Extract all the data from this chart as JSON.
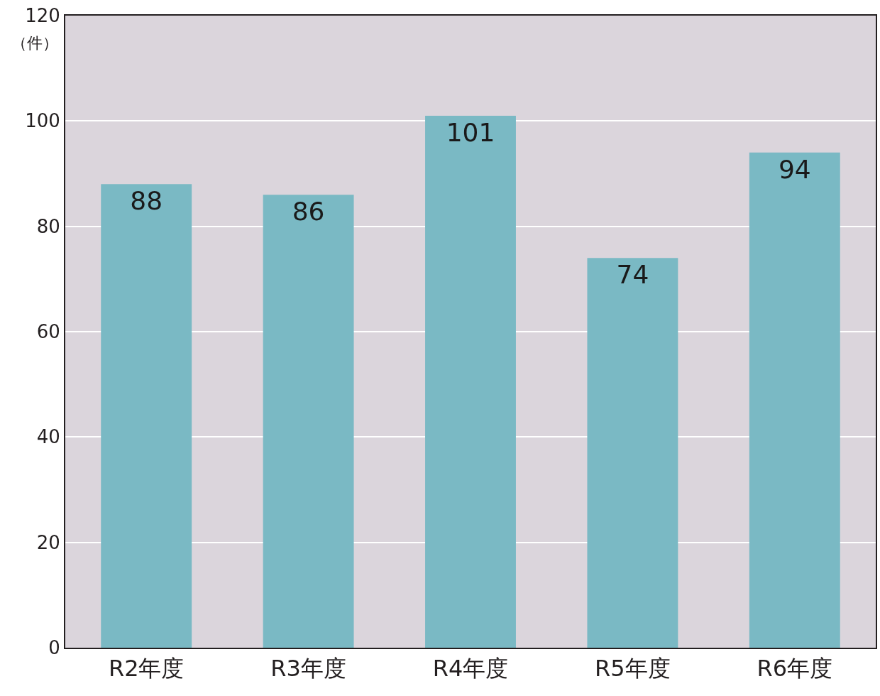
{
  "chart_data": {
    "type": "bar",
    "ylabel": "（件）",
    "categories": [
      "R2年度",
      "R3年度",
      "R4年度",
      "R5年度",
      "R6年度"
    ],
    "values": [
      88,
      86,
      101,
      74,
      94
    ],
    "color": "#7ab9c4",
    "ylim": [
      0,
      120
    ],
    "yticks": [
      0,
      20,
      40,
      60,
      80,
      100,
      120
    ],
    "grid": "y",
    "data_labels": true,
    "legend": false
  }
}
